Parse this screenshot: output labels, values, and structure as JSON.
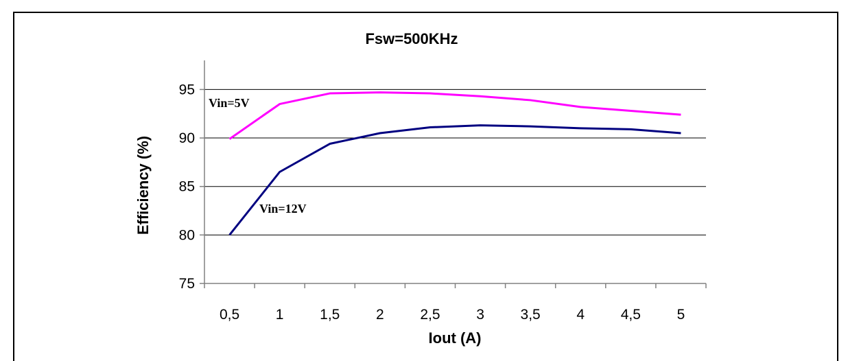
{
  "caption": "",
  "chart_data": {
    "type": "line",
    "title": "Fsw=500KHz",
    "xlabel": "Iout (A)",
    "ylabel": "Efficiency (%)",
    "categories": [
      "0,5",
      "1",
      "1,5",
      "2",
      "2,5",
      "3",
      "3,5",
      "4",
      "4,5",
      "5"
    ],
    "x": [
      0.5,
      1,
      1.5,
      2,
      2.5,
      3,
      3.5,
      4,
      4.5,
      5
    ],
    "ylim": [
      75,
      98
    ],
    "yticks": [
      75,
      80,
      85,
      90,
      95
    ],
    "grid": true,
    "series": [
      {
        "name": "Vin=5V",
        "color": "#ff00ff",
        "values": [
          89.9,
          93.5,
          94.6,
          94.7,
          94.6,
          94.3,
          93.9,
          93.2,
          92.8,
          92.4
        ]
      },
      {
        "name": "Vin=12V",
        "color": "#000080",
        "values": [
          80.0,
          86.5,
          89.4,
          90.5,
          91.1,
          91.3,
          91.2,
          91.0,
          90.9,
          90.5
        ]
      }
    ]
  }
}
